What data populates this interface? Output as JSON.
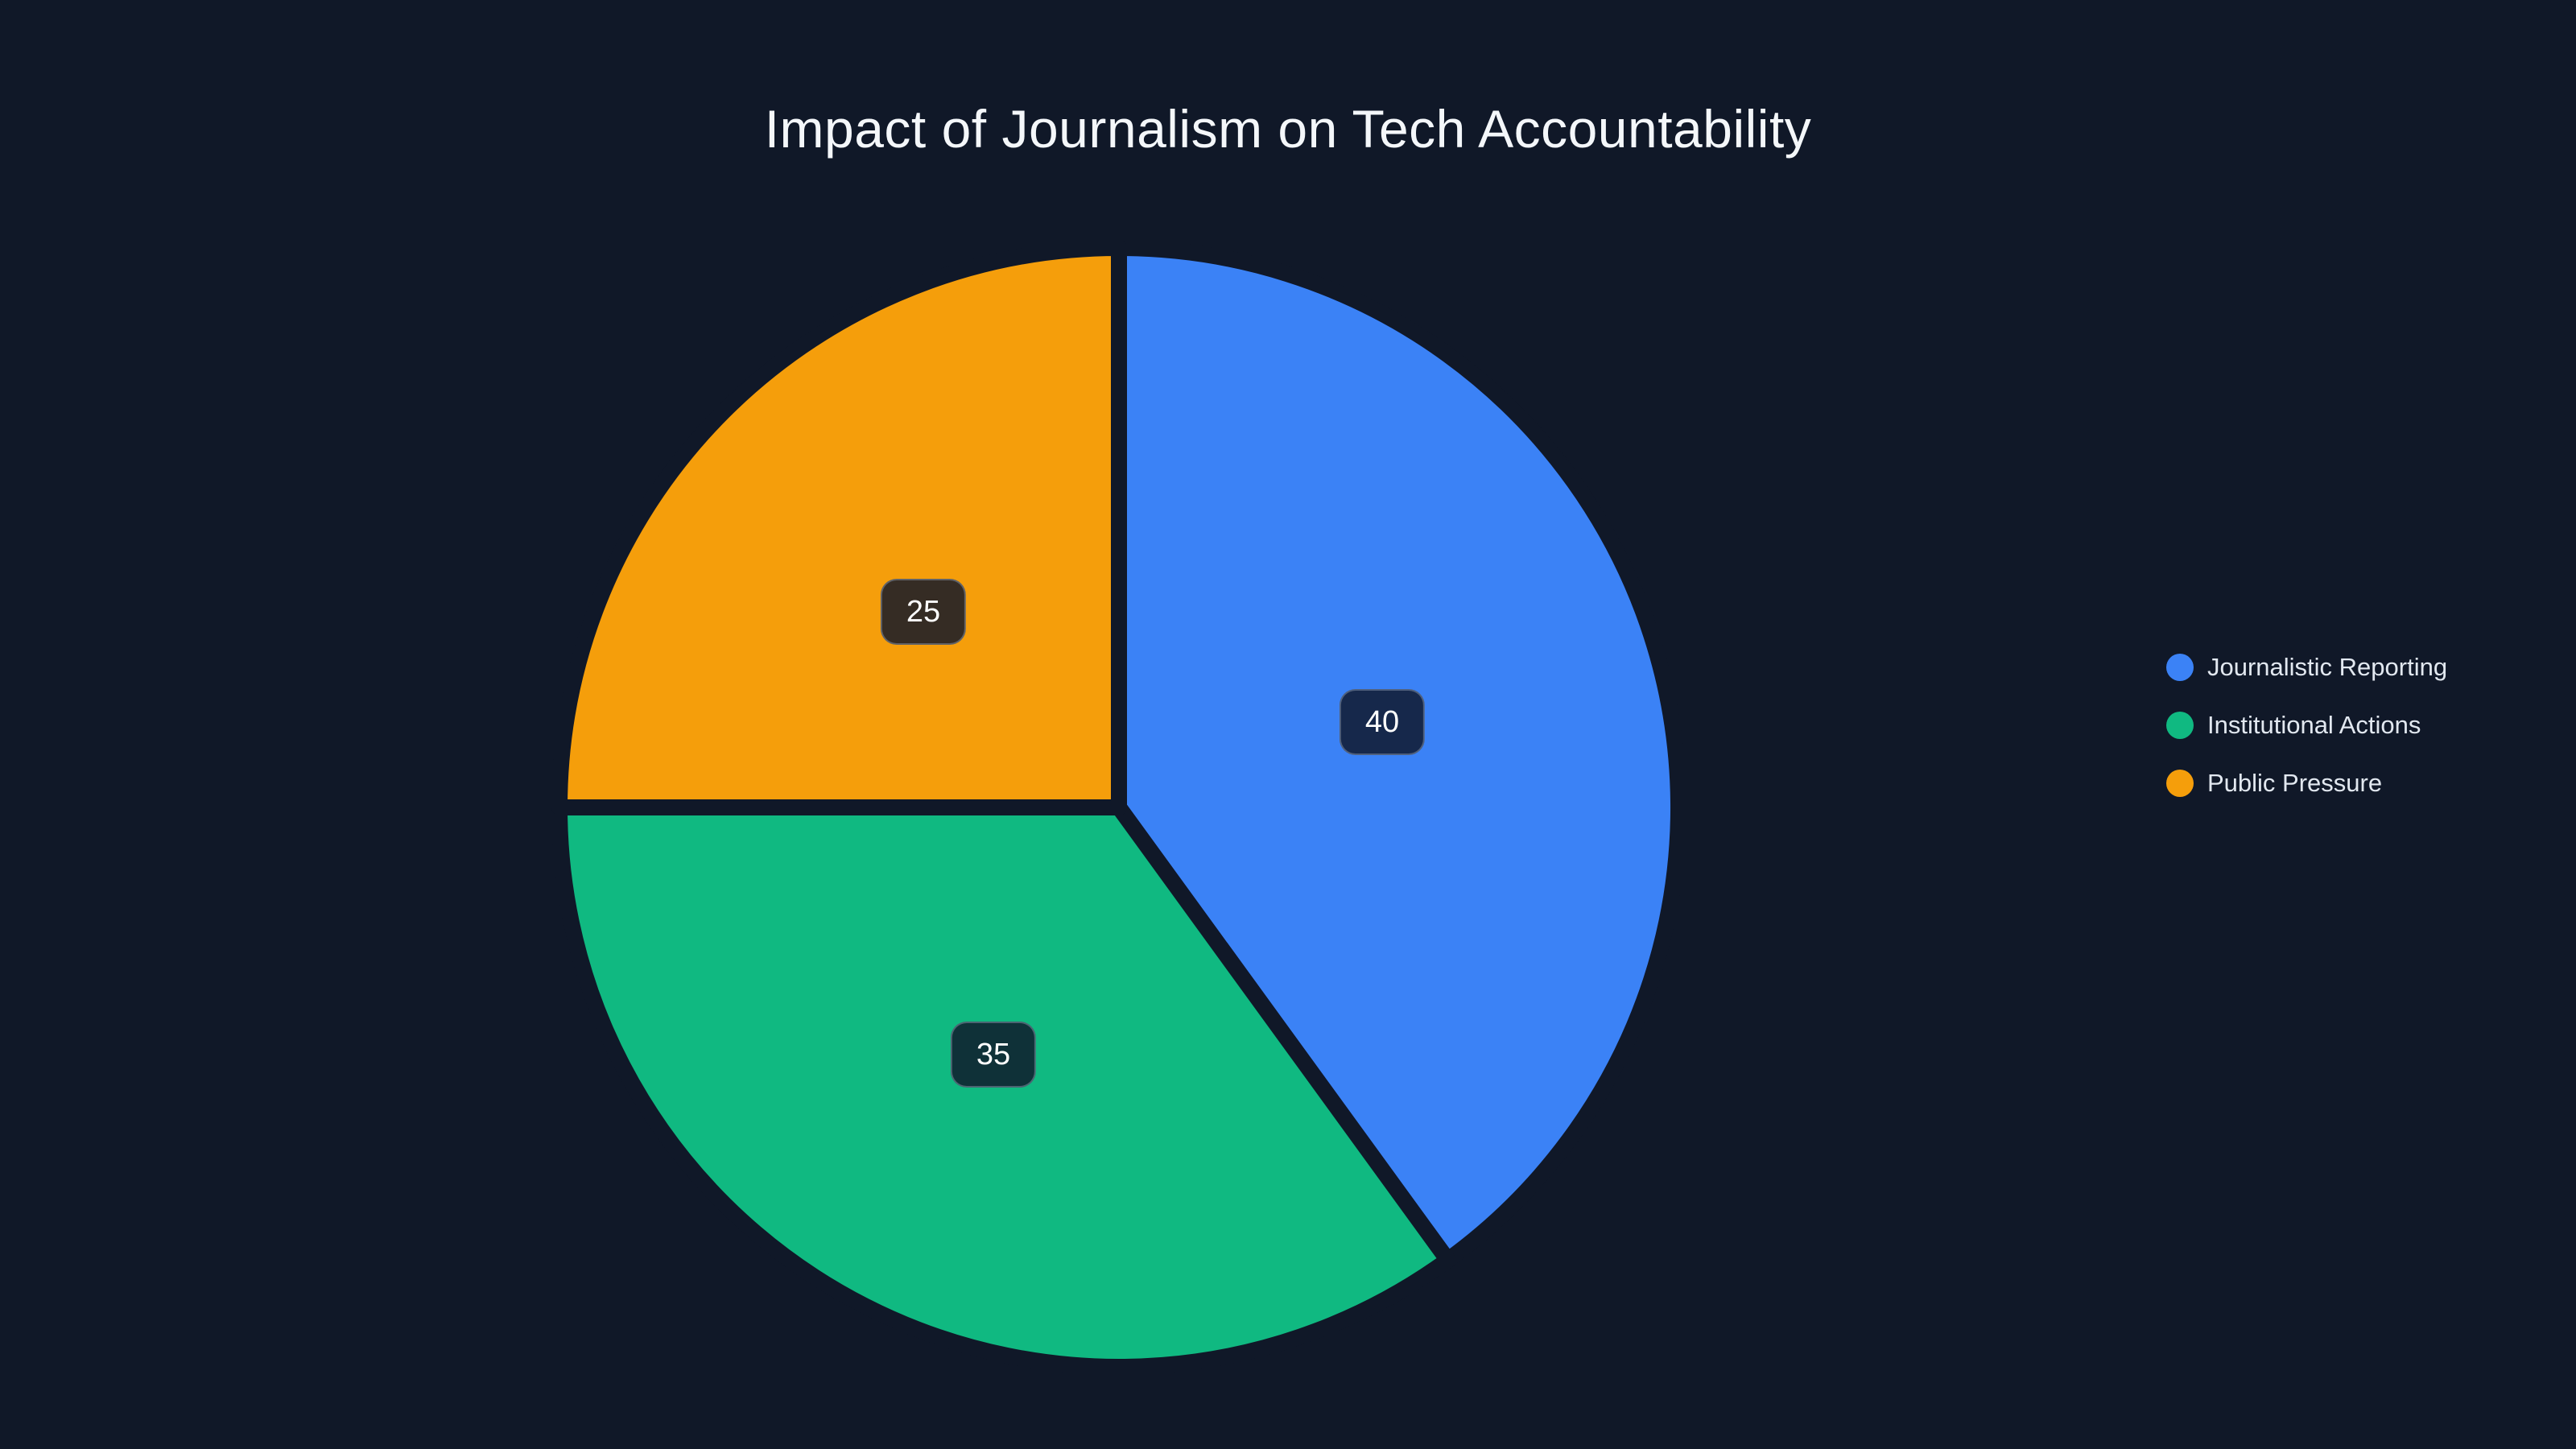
{
  "chart_data": {
    "type": "pie",
    "title": "Impact of Journalism on Tech Accountability",
    "series": [
      {
        "label": "Journalistic Reporting",
        "value": 40,
        "data_label": "40",
        "color": "#3b82f6"
      },
      {
        "label": "Institutional Actions",
        "value": 35,
        "data_label": "35",
        "color": "#10b981"
      },
      {
        "label": "Public Pressure",
        "value": 25,
        "data_label": "25",
        "color": "#f59e0b"
      }
    ],
    "start_angle": "12-oclock",
    "direction": "clockwise",
    "data_labels_shown": true,
    "legend_position": "right"
  },
  "theme": {
    "background": "#101828",
    "title_color": "#f4f7fa",
    "legend_text_color": "#e2e8f0",
    "value_label_bg": "rgba(15,23,42,0.84)",
    "value_label_border": "rgba(148,163,184,0.45)",
    "value_label_text_color": "#ffffff",
    "slice_separator_color": "#101828"
  }
}
